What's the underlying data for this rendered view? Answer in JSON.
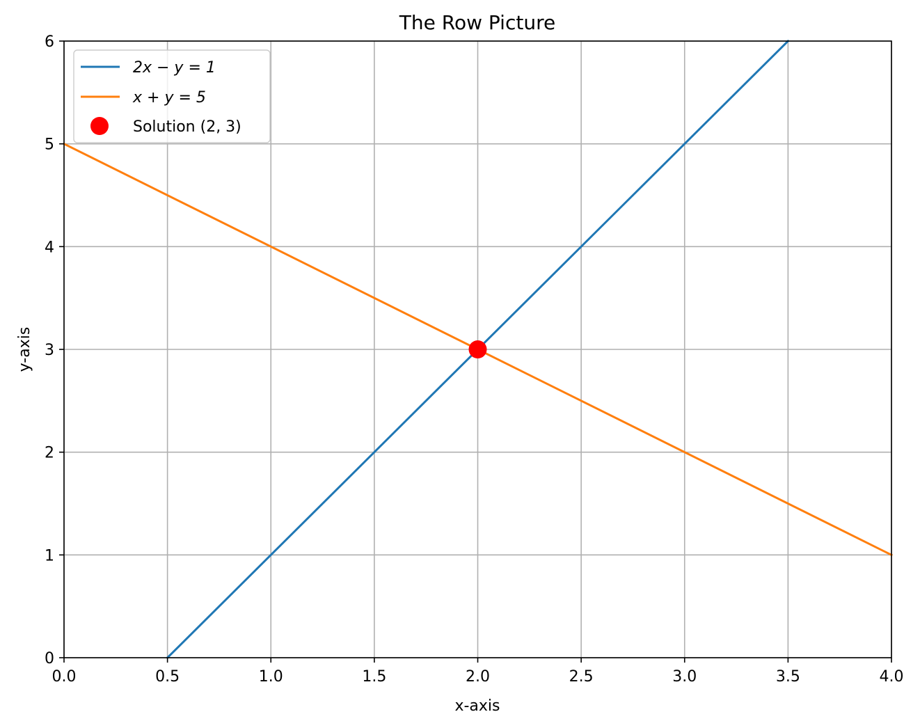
{
  "chart_data": {
    "type": "line",
    "title": "The Row Picture",
    "xlabel": "x-axis",
    "ylabel": "y-axis",
    "xlim": [
      0,
      4
    ],
    "ylim": [
      0,
      6
    ],
    "xticks": [
      0.0,
      0.5,
      1.0,
      1.5,
      2.0,
      2.5,
      3.0,
      3.5,
      4.0
    ],
    "xtick_labels": [
      "0.0",
      "0.5",
      "1.0",
      "1.5",
      "2.0",
      "2.5",
      "3.0",
      "3.5",
      "4.0"
    ],
    "yticks": [
      0,
      1,
      2,
      3,
      4,
      5,
      6
    ],
    "ytick_labels": [
      "0",
      "1",
      "2",
      "3",
      "4",
      "5",
      "6"
    ],
    "grid": true,
    "legend_position": "top-left",
    "series": [
      {
        "name": "2x − y = 1",
        "color": "#1f77b4",
        "x": [
          0.5,
          3.5
        ],
        "y": [
          0,
          6
        ]
      },
      {
        "name": "x + y = 5",
        "color": "#ff7f0e",
        "x": [
          0,
          4
        ],
        "y": [
          5,
          1
        ]
      }
    ],
    "points": [
      {
        "name": "Solution (2, 3)",
        "color": "#ff0000",
        "x": 2,
        "y": 3
      }
    ]
  }
}
